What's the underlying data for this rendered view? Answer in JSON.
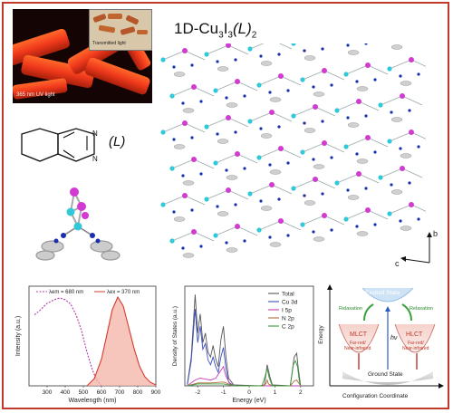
{
  "photo": {
    "inset_label": "Transmitted light",
    "uv_label": "365 nm UV light"
  },
  "ligand_label": "(L)",
  "structure": {
    "title_prefix": "1D-Cu",
    "title_sub1": "3",
    "title_mid": "I",
    "title_sub2": "3",
    "title_L": "(L)",
    "title_sub3": "2",
    "axis_b": "b",
    "axis_c": "c"
  },
  "pl_chart": {
    "ylabel": "Intensity (a.u.)",
    "xlabel": "Wavelength (nm)",
    "legend_em": "λem = 680 nm",
    "legend_ex": "λex = 370 nm"
  },
  "dos_chart": {
    "ylabel": "Density of States (a.u.)",
    "xlabel": "Energy (eV)",
    "legend": [
      "Total",
      "Cu 3d",
      "I 5p",
      "N 2p",
      "C 2p"
    ]
  },
  "energy_diagram": {
    "excited": "Excited State",
    "ground": "Ground State",
    "relax_left": "Relaxation",
    "relax_right": "Relaxation",
    "mlct": "MLCT",
    "hlct": "HLCT",
    "far_red_left": "Far-red/",
    "nir_left": "Near-infrared",
    "far_red_right": "Far-red/",
    "nir_right": "Near-infrared",
    "hv": "hν",
    "ylabel": "Energy",
    "xlabel": "Configuration Coordinate"
  },
  "chart_data": [
    {
      "type": "line",
      "xlabel": "Wavelength (nm)",
      "ylabel": "Intensity (a.u.)",
      "xlim": [
        200,
        900
      ],
      "x_ticks": [
        300,
        400,
        500,
        600,
        700,
        800,
        900
      ],
      "series": [
        {
          "name": "λem = 680 nm",
          "style": "dotted",
          "color": "#b03aa8",
          "x": [
            230,
            260,
            300,
            340,
            370,
            400,
            430,
            460,
            490,
            520,
            550,
            575,
            600
          ],
          "y": [
            0.8,
            0.85,
            0.93,
            0.97,
            0.99,
            0.97,
            0.92,
            0.8,
            0.62,
            0.38,
            0.18,
            0.06,
            0.0
          ]
        },
        {
          "name": "λex = 370 nm",
          "style": "filled",
          "color": "#d73a2f",
          "x": [
            520,
            560,
            600,
            630,
            660,
            690,
            720,
            750,
            780,
            810,
            840,
            870,
            900
          ],
          "y": [
            0.0,
            0.08,
            0.3,
            0.58,
            0.86,
            1.0,
            0.9,
            0.66,
            0.42,
            0.22,
            0.1,
            0.04,
            0.01
          ]
        }
      ]
    },
    {
      "type": "line",
      "xlabel": "Energy (eV)",
      "ylabel": "Density of States (a.u.)",
      "xlim": [
        -2.5,
        2.5
      ],
      "x_ticks": [
        -2,
        -1,
        0,
        1,
        2
      ],
      "series": [
        {
          "name": "Total",
          "color": "#555555",
          "x": [
            -2.4,
            -2.25,
            -2.1,
            -2.0,
            -1.9,
            -1.8,
            -1.7,
            -1.6,
            -1.5,
            -1.4,
            -1.3,
            -1.2,
            -1.1,
            -1.0,
            -0.9,
            -0.8,
            -0.6,
            0.4,
            0.6,
            0.7,
            0.8,
            0.9,
            1.6,
            1.75,
            1.85,
            1.9,
            2.0
          ],
          "y": [
            0.02,
            0.3,
            0.95,
            0.55,
            0.75,
            0.45,
            0.55,
            0.35,
            0.3,
            0.42,
            0.28,
            0.2,
            0.48,
            0.62,
            0.3,
            0.08,
            0.01,
            0.0,
            0.01,
            0.22,
            0.1,
            0.01,
            0.0,
            0.3,
            0.34,
            0.2,
            0.0
          ]
        },
        {
          "name": "Cu 3d",
          "color": "#3b4ec4",
          "x": [
            -2.4,
            -2.25,
            -2.1,
            -2.0,
            -1.9,
            -1.8,
            -1.7,
            -1.6,
            -1.5,
            -1.4,
            -1.3,
            -1.2,
            -1.1,
            -1.0,
            -0.9,
            -0.8,
            -0.6,
            0.5,
            1.5,
            2.0
          ],
          "y": [
            0.01,
            0.26,
            0.8,
            0.45,
            0.62,
            0.38,
            0.44,
            0.27,
            0.22,
            0.3,
            0.2,
            0.14,
            0.3,
            0.4,
            0.18,
            0.04,
            0.0,
            0.0,
            0.0,
            0.0
          ]
        },
        {
          "name": "I 5p",
          "color": "#c43bb8",
          "x": [
            -2.4,
            -2.1,
            -1.9,
            -1.7,
            -1.5,
            -1.3,
            -1.1,
            -1.0,
            -0.9,
            -0.7,
            0.5,
            2.0
          ],
          "y": [
            0.0,
            0.06,
            0.08,
            0.07,
            0.06,
            0.08,
            0.16,
            0.2,
            0.1,
            0.0,
            0.0,
            0.0
          ]
        },
        {
          "name": "N 2p",
          "color": "#b06a3a",
          "x": [
            -2.4,
            -2.0,
            -1.5,
            -1.0,
            -0.6,
            0.5,
            0.65,
            0.7,
            0.75,
            0.9,
            1.6,
            1.75,
            1.85,
            1.95,
            2.0
          ],
          "y": [
            0.0,
            0.03,
            0.03,
            0.04,
            0.0,
            0.0,
            0.02,
            0.06,
            0.02,
            0.0,
            0.0,
            0.05,
            0.06,
            0.02,
            0.0
          ]
        },
        {
          "name": "C 2p",
          "color": "#3a9a3a",
          "x": [
            -2.4,
            -2.0,
            -1.5,
            -1.0,
            -0.6,
            0.5,
            0.62,
            0.7,
            0.78,
            0.9,
            1.6,
            1.72,
            1.8,
            1.88,
            1.95,
            2.0
          ],
          "y": [
            0.0,
            0.02,
            0.02,
            0.02,
            0.0,
            0.0,
            0.1,
            0.18,
            0.08,
            0.0,
            0.0,
            0.22,
            0.26,
            0.2,
            0.05,
            0.0
          ]
        }
      ]
    }
  ]
}
